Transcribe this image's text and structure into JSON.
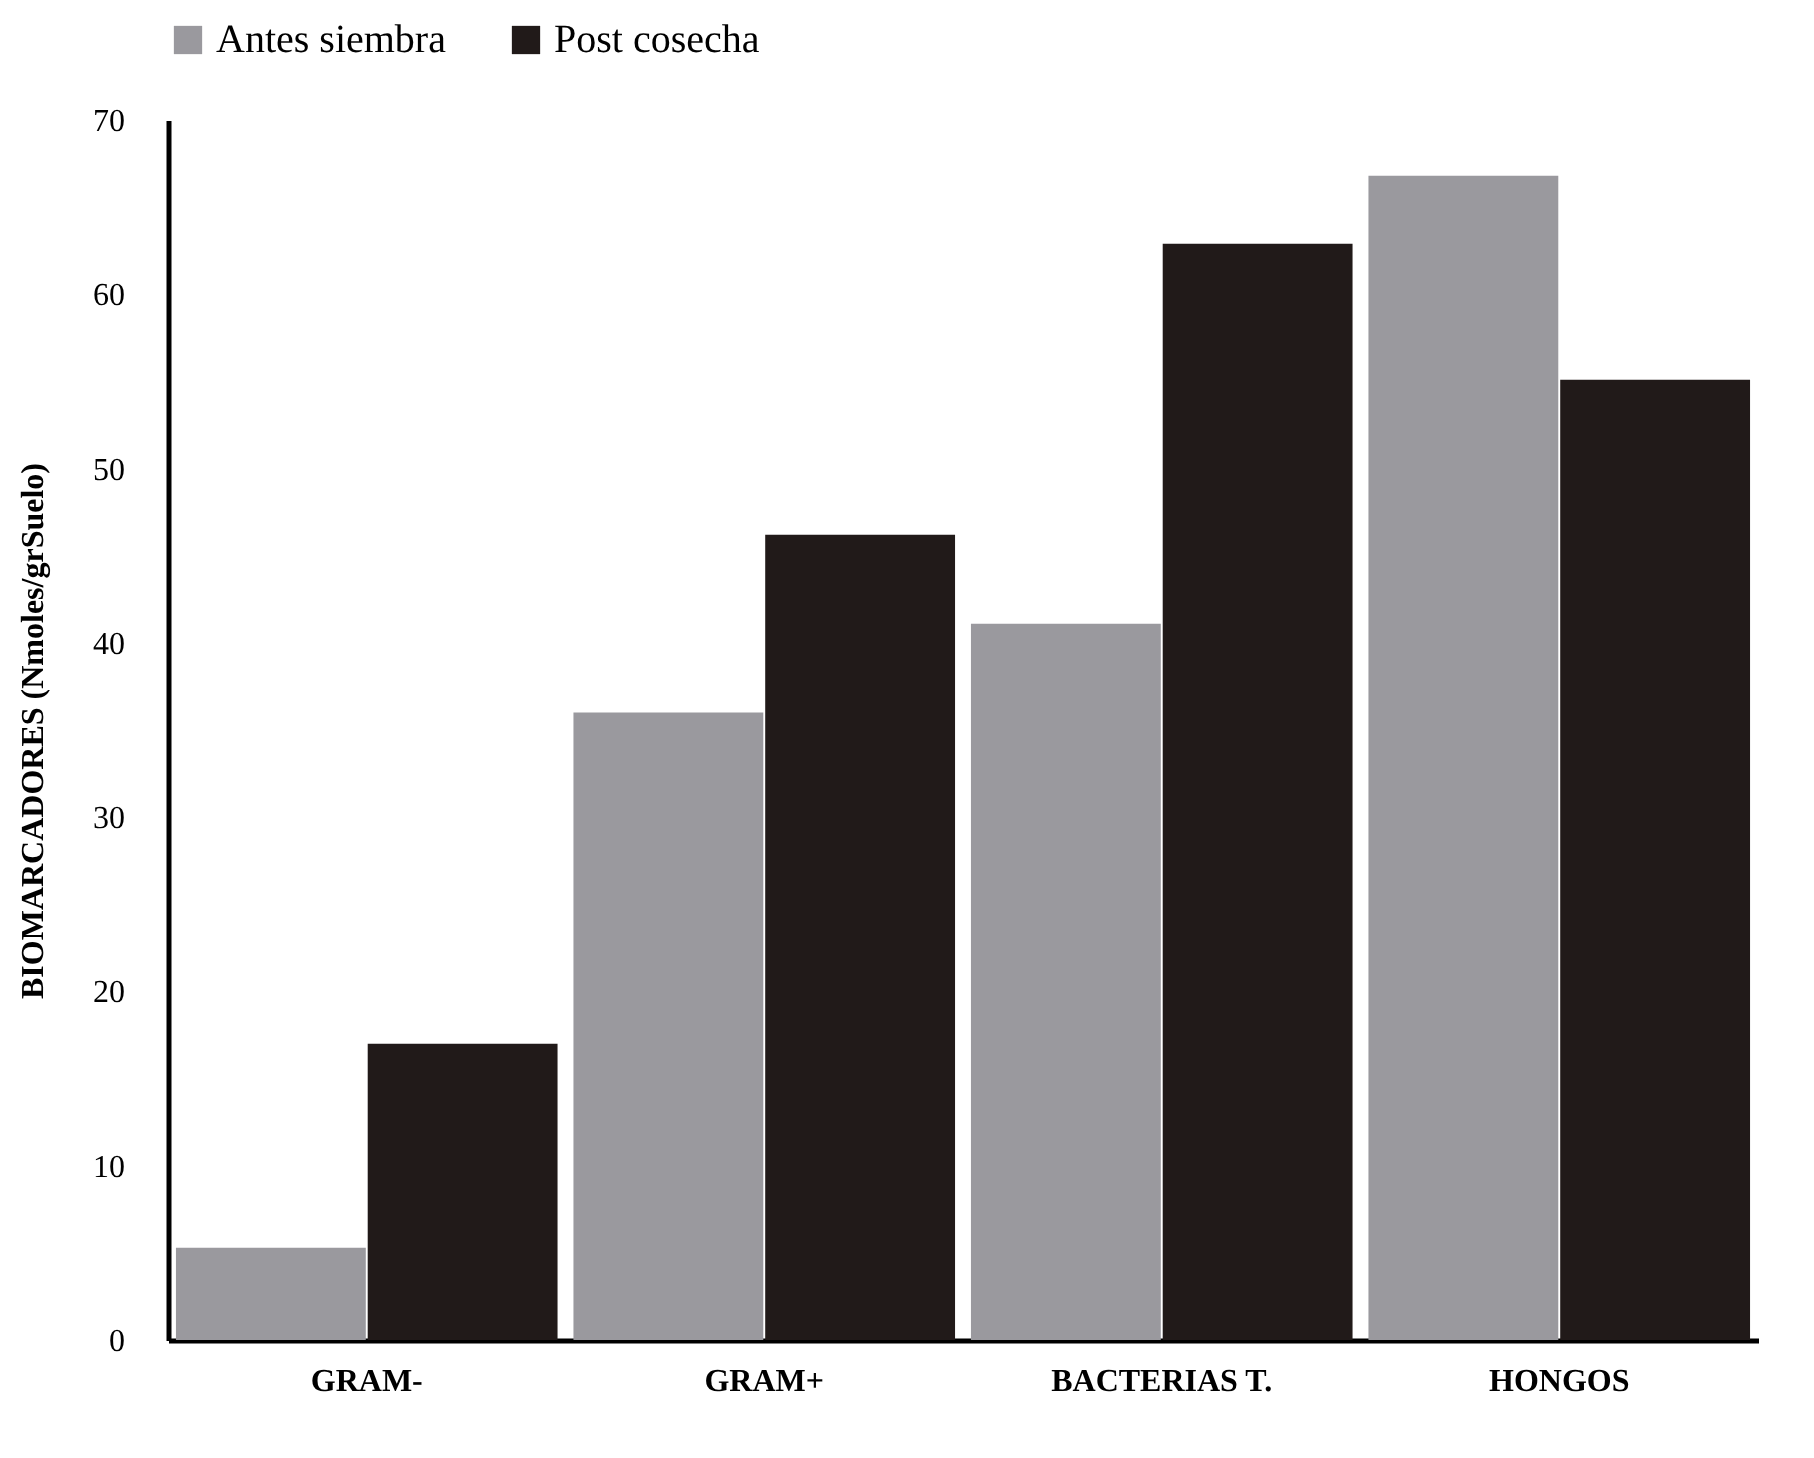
{
  "chart_data": {
    "type": "bar",
    "ylabel": "BIOMARCADORES  (Nmoles/grSuelo)",
    "categories": [
      "GRAM-",
      "GRAM+",
      "BACTERIAS T.",
      "HONGOS"
    ],
    "series": [
      {
        "name": "Antes siembra",
        "color": "#9a999e",
        "values": [
          5.3,
          36.0,
          41.1,
          66.8
        ]
      },
      {
        "name": "Post cosecha",
        "color": "#211a19",
        "values": [
          17.0,
          46.2,
          62.9,
          55.1
        ]
      }
    ],
    "ylim": [
      0,
      70
    ],
    "yticks": [
      0,
      10,
      20,
      30,
      40,
      50,
      60,
      70
    ],
    "grid": false,
    "legend": "top"
  }
}
